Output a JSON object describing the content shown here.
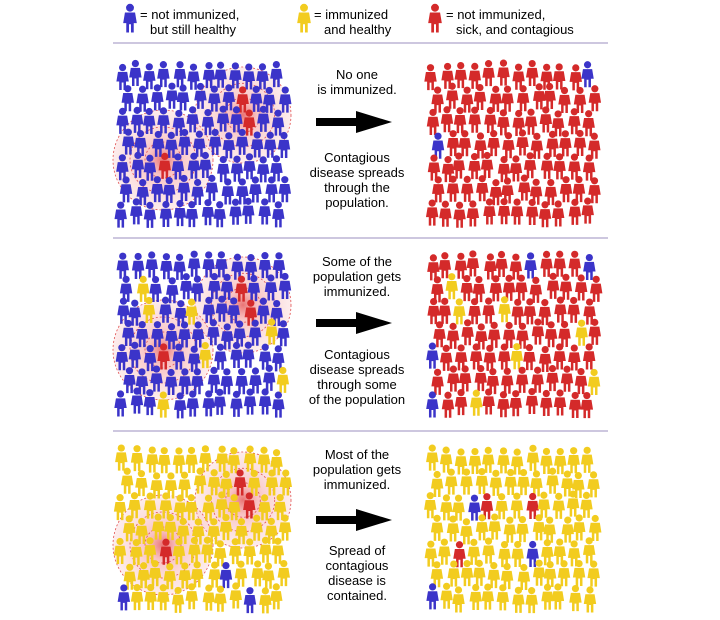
{
  "colors": {
    "not_immunized_healthy": "#3b34c9",
    "immunized_healthy": "#f2cc1f",
    "sick_contagious": "#d42a2a",
    "contagion_halo": "#f07070",
    "divider": "#9b8fbf",
    "arrow": "#000000"
  },
  "legend": [
    {
      "key": "not_immunized_healthy",
      "line1": "= not immunized,",
      "line2": "but still healthy"
    },
    {
      "key": "immunized_healthy",
      "line1": "= immunized",
      "line2": "and healthy"
    },
    {
      "key": "sick_contagious",
      "line1": "= not immunized,",
      "line2": "sick, and contagious"
    }
  ],
  "scenarios": [
    {
      "top_text": [
        "No one",
        "is immunized."
      ],
      "bottom_text": [
        "Contagious",
        "disease spreads",
        "through the",
        "population."
      ],
      "before": {
        "immunized_fraction": 0.0,
        "sick_count": 3
      },
      "after": {
        "state": "widespread",
        "healthy_remaining": 2
      }
    },
    {
      "top_text": [
        "Some of the",
        "population gets",
        "immunized."
      ],
      "bottom_text": [
        "Contagious",
        "disease spreads",
        "through some",
        "of the population"
      ],
      "before": {
        "immunized_fraction": 0.13,
        "sick_count": 3
      },
      "after": {
        "state": "partial",
        "healthy_remaining": 5
      }
    },
    {
      "top_text": [
        "Most of the",
        "population gets",
        "immunized."
      ],
      "bottom_text": [
        "Spread of",
        "contagious",
        "disease is",
        "contained."
      ],
      "before": {
        "immunized_fraction": 0.9,
        "sick_count": 3
      },
      "after": {
        "state": "contained",
        "sick_count": 3
      }
    }
  ]
}
